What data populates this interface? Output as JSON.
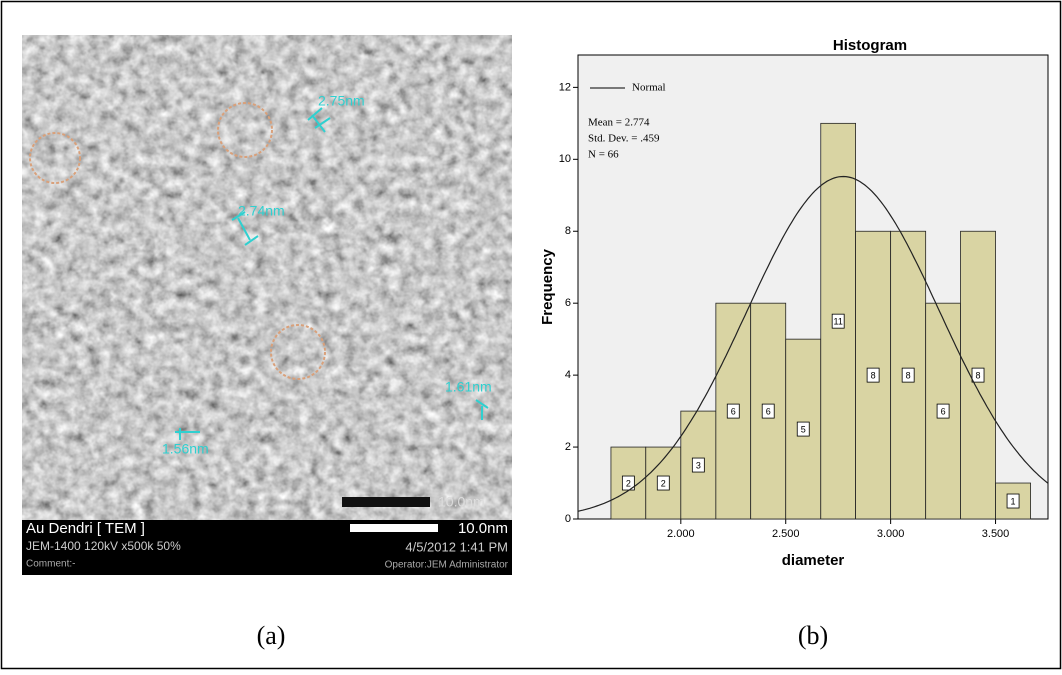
{
  "image": {
    "measurements": [
      "2.75nm",
      "2.74nm",
      "1.61nm",
      "1.56nm"
    ],
    "scale_bar": "10.0nm",
    "info": {
      "title": "Au Dendri [ TEM ]",
      "scale": "10.0nm",
      "settings": "JEM-1400 120kV x500k 50%",
      "date": "4/5/2012 1:41 PM",
      "comment": "Comment:-",
      "operator": "Operator:JEM Administrator"
    }
  },
  "captions": [
    "(a)",
    "(b)"
  ],
  "chart_data": {
    "type": "histogram",
    "title": "Histogram",
    "x_label": "diameter",
    "y_label": "Frequency",
    "bins": [
      1.667,
      1.833,
      2.0,
      2.167,
      2.333,
      2.5,
      2.667,
      2.833,
      3.0,
      3.167,
      3.333,
      3.5,
      3.667
    ],
    "values": [
      2,
      2,
      3,
      6,
      6,
      5,
      11,
      8,
      8,
      6,
      8,
      1
    ],
    "color": "#d9d4a3",
    "xlim": [
      1.51,
      3.75
    ],
    "xticks": [
      {
        "value": 2,
        "label": "2.000"
      },
      {
        "value": 2.5,
        "label": "2.500"
      },
      {
        "value": 3,
        "label": "3.000"
      },
      {
        "value": 3.5,
        "label": "3.500"
      }
    ],
    "ylim": [
      0,
      12.9
    ],
    "yticks": [
      0,
      2,
      4,
      6,
      8,
      10,
      12
    ],
    "normal": {
      "name": "Normal",
      "mean": {
        "value": 2.774,
        "label": "Mean = 2.774"
      },
      "sd": {
        "value": 0.459,
        "label": "Std. Dev. =  .459"
      },
      "n": {
        "value": 66,
        "label": "N = 66"
      }
    }
  }
}
